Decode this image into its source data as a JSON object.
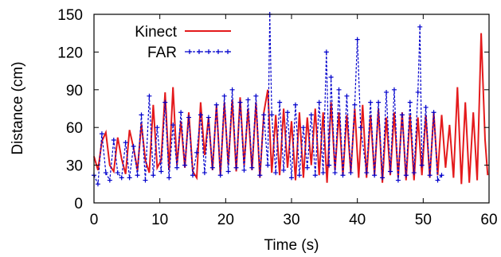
{
  "chart_data": {
    "type": "line",
    "xlabel": "Time (s)",
    "ylabel": "Distance (cm)",
    "xlim": [
      0,
      60
    ],
    "ylim": [
      0,
      150
    ],
    "xticks": [
      0,
      10,
      20,
      30,
      40,
      50,
      60
    ],
    "yticks": [
      0,
      30,
      60,
      90,
      120,
      150
    ],
    "grid": false,
    "legend_position": "top-left",
    "series": [
      {
        "name": "Kinect",
        "color": "#e41a1c",
        "marker": "none",
        "x": [
          0.0,
          0.6,
          1.2,
          1.8,
          2.4,
          3.0,
          3.6,
          4.2,
          4.8,
          5.4,
          6.0,
          6.6,
          7.2,
          7.8,
          8.4,
          9.0,
          9.6,
          10.2,
          10.8,
          11.4,
          12.0,
          12.6,
          13.2,
          13.8,
          14.4,
          15.0,
          15.6,
          16.2,
          16.8,
          17.4,
          18.0,
          18.6,
          19.2,
          19.8,
          20.4,
          21.0,
          21.6,
          22.2,
          22.8,
          23.4,
          24.0,
          24.6,
          25.2,
          25.8,
          26.4,
          27.0,
          27.6,
          28.2,
          28.8,
          29.4,
          30.0,
          30.6,
          31.2,
          31.8,
          32.4,
          33.0,
          33.6,
          34.2,
          34.8,
          35.4,
          36.0,
          36.6,
          37.2,
          37.8,
          38.4,
          39.0,
          39.6,
          40.2,
          40.8,
          41.4,
          42.0,
          42.6,
          43.2,
          43.8,
          44.4,
          45.0,
          45.6,
          46.2,
          46.8,
          47.4,
          48.0,
          48.6,
          49.2,
          49.8,
          50.4,
          51.0,
          51.6,
          52.2,
          52.8,
          53.4,
          54.0,
          54.6,
          55.2,
          55.8,
          56.4,
          57.0,
          57.6,
          58.2,
          58.8,
          59.4,
          59.8
        ],
        "y": [
          37,
          26,
          49,
          56,
          30,
          25,
          52,
          35,
          23,
          58,
          44,
          26,
          63,
          34,
          24,
          78,
          28,
          34,
          88,
          26,
          92,
          30,
          65,
          28,
          72,
          25,
          20,
          80,
          38,
          68,
          26,
          78,
          22,
          80,
          30,
          82,
          25,
          84,
          30,
          75,
          26,
          80,
          20,
          72,
          90,
          24,
          70,
          22,
          75,
          28,
          65,
          18,
          72,
          20,
          68,
          30,
          75,
          22,
          72,
          16,
          80,
          26,
          72,
          22,
          70,
          24,
          75,
          20,
          78,
          20,
          70,
          22,
          75,
          16,
          68,
          22,
          72,
          20,
          72,
          18,
          70,
          18,
          68,
          22,
          70,
          20,
          72,
          22,
          70,
          28,
          62,
          20,
          92,
          15,
          80,
          16,
          72,
          18,
          135,
          50,
          22
        ]
      },
      {
        "name": "FAR",
        "color": "#0000cc",
        "marker": "plus",
        "x": [
          0.0,
          0.6,
          1.2,
          1.8,
          2.4,
          3.0,
          3.6,
          4.2,
          4.8,
          5.4,
          6.0,
          6.6,
          7.2,
          7.8,
          8.4,
          9.0,
          9.6,
          10.2,
          10.8,
          11.4,
          12.0,
          12.6,
          13.2,
          13.8,
          14.4,
          15.0,
          15.6,
          16.2,
          16.8,
          17.4,
          18.0,
          18.6,
          19.2,
          19.8,
          20.4,
          21.0,
          21.6,
          22.2,
          22.8,
          23.4,
          24.0,
          24.6,
          25.2,
          25.8,
          26.4,
          26.7,
          27.0,
          27.6,
          28.2,
          28.8,
          29.4,
          30.0,
          30.6,
          31.2,
          31.8,
          32.4,
          33.0,
          33.6,
          34.2,
          34.8,
          35.3,
          35.7,
          36.0,
          36.6,
          37.2,
          37.8,
          38.4,
          39.0,
          39.6,
          40.0,
          40.5,
          41.4,
          42.0,
          42.6,
          43.2,
          43.8,
          44.4,
          45.0,
          45.6,
          46.2,
          46.8,
          47.4,
          48.0,
          48.6,
          49.2,
          49.5,
          49.8,
          50.4,
          51.0,
          51.6,
          52.2,
          52.8
        ],
        "y": [
          22,
          15,
          55,
          24,
          18,
          50,
          24,
          20,
          48,
          20,
          45,
          22,
          70,
          18,
          85,
          22,
          60,
          25,
          80,
          20,
          62,
          28,
          72,
          30,
          68,
          22,
          40,
          70,
          24,
          68,
          28,
          78,
          22,
          85,
          25,
          90,
          28,
          80,
          26,
          82,
          28,
          85,
          22,
          70,
          30,
          150,
          70,
          24,
          80,
          26,
          72,
          20,
          78,
          22,
          60,
          28,
          70,
          22,
          80,
          24,
          120,
          30,
          100,
          24,
          90,
          22,
          85,
          24,
          78,
          130,
          60,
          24,
          80,
          22,
          80,
          20,
          88,
          25,
          90,
          18,
          70,
          22,
          80,
          24,
          88,
          140,
          30,
          76,
          22,
          72,
          18,
          22
        ]
      }
    ]
  }
}
